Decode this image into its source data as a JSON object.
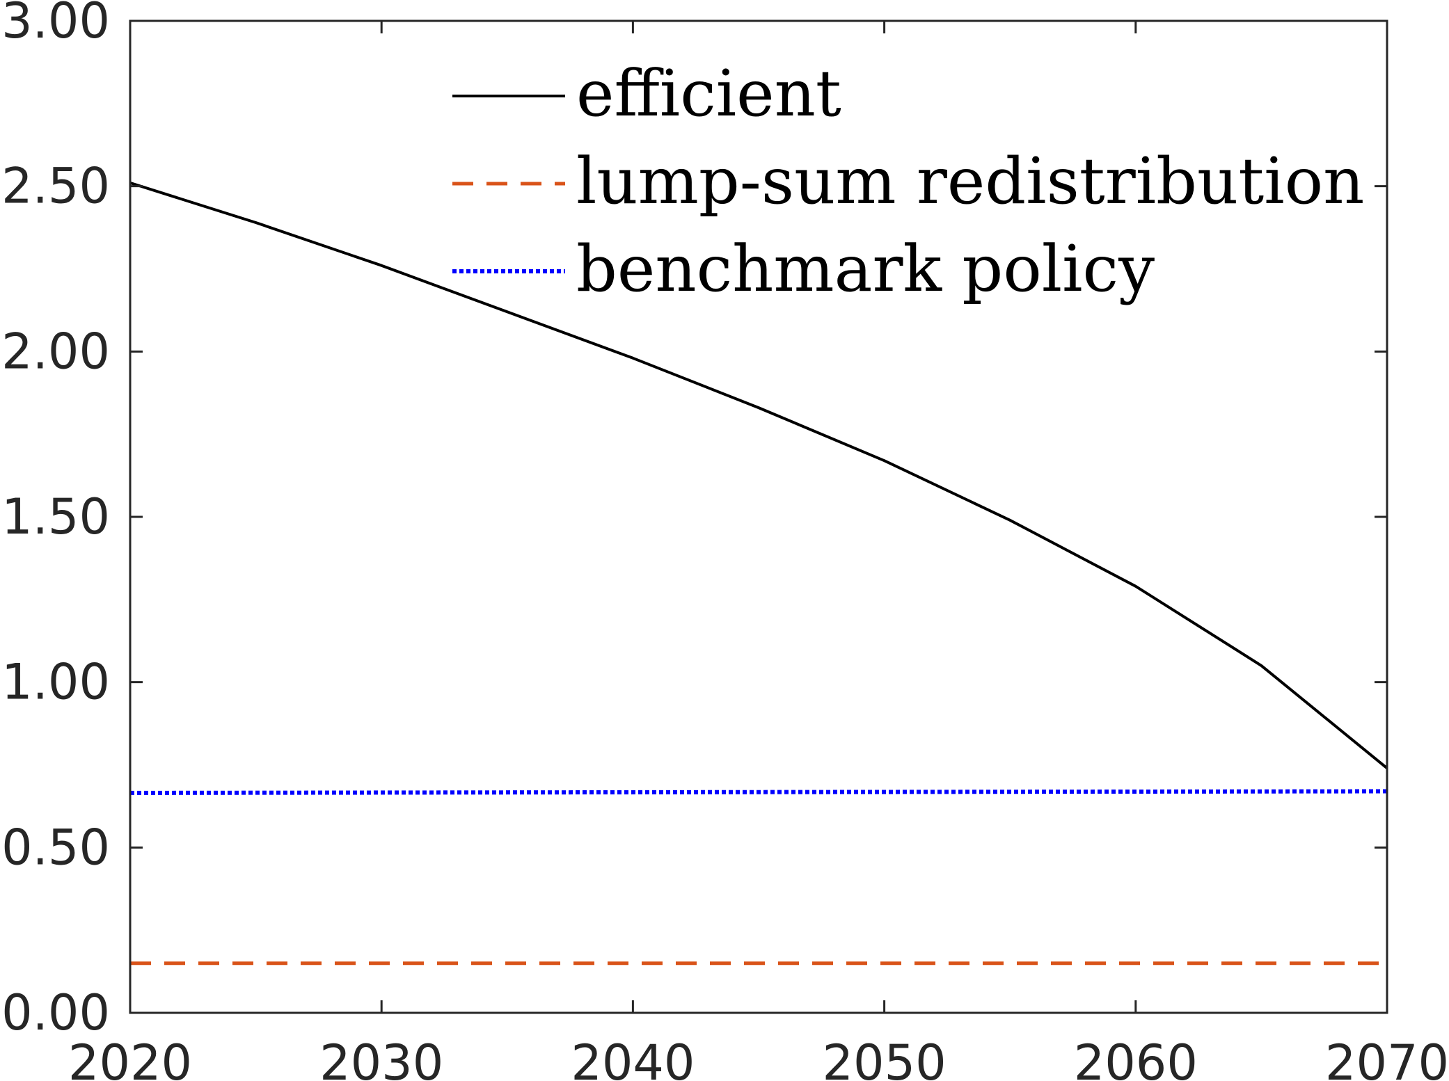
{
  "chart_data": {
    "type": "line",
    "title": "",
    "xlabel": "",
    "ylabel": "",
    "xlim": [
      2020,
      2070
    ],
    "ylim": [
      0,
      3
    ],
    "x_ticks": [
      2020,
      2030,
      2040,
      2050,
      2060,
      2070
    ],
    "x_tick_labels": [
      "2020",
      "2030",
      "2040",
      "2050",
      "2060",
      "2070"
    ],
    "y_ticks": [
      0,
      0.5,
      1,
      1.5,
      2,
      2.5,
      3
    ],
    "y_tick_labels": [
      "0.00",
      "0.50",
      "1.00",
      "1.50",
      "2.00",
      "2.50",
      "3.00"
    ],
    "grid": false,
    "legend_position": "top-center",
    "series": [
      {
        "name": "efficient",
        "line_style": "solid",
        "color": "#000000",
        "x": [
          2020,
          2025,
          2030,
          2035,
          2040,
          2045,
          2050,
          2055,
          2060,
          2065,
          2070
        ],
        "y": [
          2.51,
          2.39,
          2.26,
          2.12,
          1.98,
          1.83,
          1.67,
          1.49,
          1.29,
          1.05,
          0.74
        ]
      },
      {
        "name": "lump-sum redistribution",
        "line_style": "dashed",
        "color": "#D95319",
        "x": [
          2020,
          2070
        ],
        "y": [
          0.15,
          0.15
        ]
      },
      {
        "name": "benchmark policy",
        "line_style": "dotted",
        "color": "#0000FF",
        "x": [
          2020,
          2070
        ],
        "y": [
          0.665,
          0.67
        ]
      }
    ]
  }
}
